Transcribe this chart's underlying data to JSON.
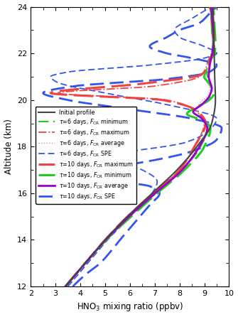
{
  "xlim": [
    2,
    10
  ],
  "ylim": [
    12,
    24
  ],
  "xlabel": "HNO$_3$ mixing ratio (ppbv)",
  "ylabel": "Altitude (km)",
  "xticks": [
    2,
    3,
    4,
    5,
    6,
    7,
    8,
    9,
    10
  ],
  "yticks": [
    12,
    14,
    16,
    18,
    20,
    22,
    24
  ],
  "background_color": "#ffffff"
}
